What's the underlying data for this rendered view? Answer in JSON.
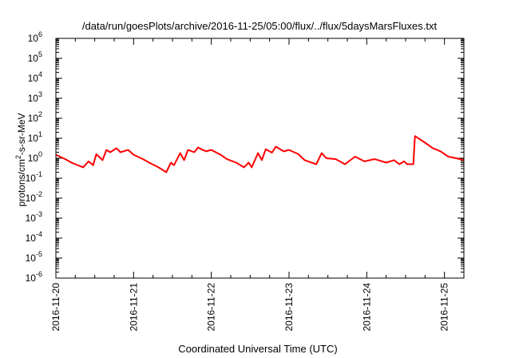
{
  "chart_data": {
    "type": "line",
    "title": "/data/run/goesPlots/archive/2016-11-25/05:00/flux/../flux/5daysMarsFluxes.txt",
    "xlabel": "Coordinated Universal Time (UTC)",
    "ylabel": {
      "before": "protons/cm",
      "sup": "2",
      "after": "-s-sr-MeV"
    },
    "y_scale": "log",
    "ylim_exponent": [
      -6,
      6
    ],
    "y_ticks": [
      {
        "base": "10",
        "exp": "-6"
      },
      {
        "base": "10",
        "exp": "-5"
      },
      {
        "base": "10",
        "exp": "-4"
      },
      {
        "base": "10",
        "exp": "-3"
      },
      {
        "base": "10",
        "exp": "-2"
      },
      {
        "base": "10",
        "exp": "-1"
      },
      {
        "base": "10",
        "exp": "0"
      },
      {
        "base": "10",
        "exp": "1"
      },
      {
        "base": "10",
        "exp": "2"
      },
      {
        "base": "10",
        "exp": "3"
      },
      {
        "base": "10",
        "exp": "4"
      },
      {
        "base": "10",
        "exp": "5"
      },
      {
        "base": "10",
        "exp": "6"
      }
    ],
    "xlim_days": [
      0,
      5.25
    ],
    "x_tick_labels": [
      "2016-11-20",
      "2016-11-21",
      "2016-11-22",
      "2016-11-23",
      "2016-11-24",
      "2016-11-25"
    ],
    "grid": false,
    "legend": "none",
    "series": [
      {
        "color": "#ff0000",
        "x": [
          0,
          0.12,
          0.2,
          0.35,
          0.42,
          0.48,
          0.52,
          0.6,
          0.65,
          0.7,
          0.78,
          0.83,
          0.93,
          1.0,
          1.12,
          1.2,
          1.32,
          1.42,
          1.48,
          1.52,
          1.6,
          1.65,
          1.7,
          1.78,
          1.83,
          1.93,
          2.0,
          2.12,
          2.2,
          2.32,
          2.42,
          2.48,
          2.52,
          2.6,
          2.65,
          2.7,
          2.78,
          2.83,
          2.93,
          3.0,
          3.12,
          3.2,
          3.35,
          3.42,
          3.48,
          3.6,
          3.72,
          3.85,
          3.97,
          4.1,
          4.25,
          4.35,
          4.42,
          4.48,
          4.52,
          4.6,
          4.62,
          4.68,
          4.75,
          4.85,
          4.95,
          5.05,
          5.15,
          5.25
        ],
        "y": [
          1.5,
          0.9,
          0.6,
          0.35,
          0.7,
          0.45,
          1.6,
          0.8,
          2.6,
          2.0,
          3.2,
          2.0,
          2.6,
          1.5,
          0.9,
          0.6,
          0.35,
          0.2,
          0.6,
          0.45,
          1.8,
          0.8,
          2.6,
          2.0,
          3.4,
          2.2,
          2.6,
          1.5,
          0.9,
          0.6,
          0.35,
          0.6,
          0.35,
          1.8,
          0.8,
          2.8,
          1.9,
          3.8,
          2.2,
          2.6,
          1.6,
          0.8,
          0.5,
          1.8,
          1.0,
          0.9,
          0.5,
          1.2,
          0.7,
          0.9,
          0.6,
          0.8,
          0.5,
          0.7,
          0.5,
          0.5,
          13,
          9,
          6,
          3.2,
          2.2,
          1.2,
          1.0,
          0.8
        ]
      }
    ]
  }
}
